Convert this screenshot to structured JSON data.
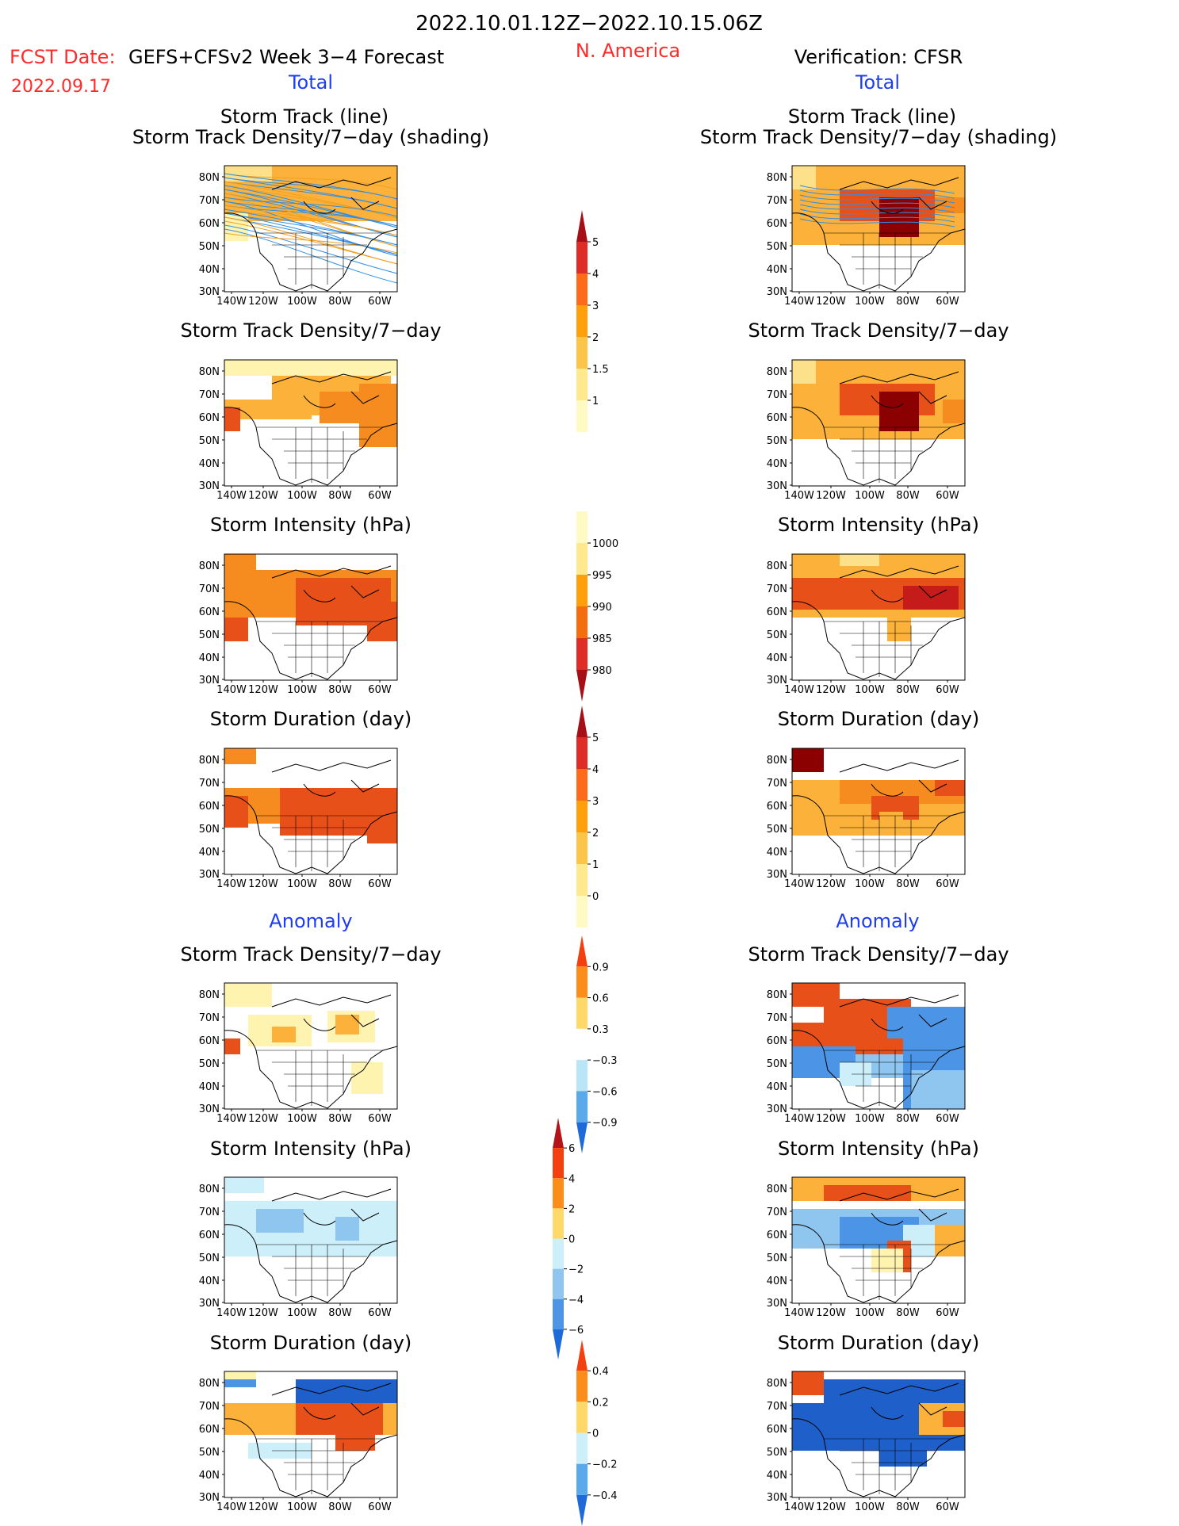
{
  "header": {
    "period": "2022.10.01.12Z−2022.10.15.06Z",
    "region": "N. America",
    "fcst_label": "FCST Date:",
    "forecast_title": "GEFS+CFSv2 Week 3−4 Forecast",
    "fcst_date": "2022.09.17",
    "verification_title": "Verification: CFSR",
    "left_total": "Total",
    "right_total": "Total",
    "left_anomaly": "Anomaly",
    "right_anomaly": "Anomaly"
  },
  "panel_titles": {
    "track_line": "Storm Track (line)",
    "track_shading": "Storm Track Density/7−day (shading)",
    "density": "Storm Track Density/7−day",
    "intensity": "Storm Intensity (hPa)",
    "duration": "Storm Duration (day)"
  },
  "axes": {
    "lat_labels": [
      "80N",
      "70N",
      "60N",
      "50N",
      "40N",
      "30N"
    ],
    "lon_labels": [
      "140W",
      "120W",
      "100W",
      "80W",
      "60W"
    ]
  },
  "colorbars": {
    "density_total": {
      "labels": [
        "5",
        "4",
        "3",
        "2",
        "1.5",
        "1"
      ],
      "colors": [
        "#a50f15",
        "#de2d26",
        "#fc6a1a",
        "#fe9f0b",
        "#fbc54a",
        "#fee98f",
        "#fff9c4"
      ]
    },
    "intensity_total": {
      "labels": [
        "1000",
        "995",
        "990",
        "985",
        "980"
      ],
      "colors": [
        "#fff9c4",
        "#fee98f",
        "#fe9f0b",
        "#f46d0e",
        "#de2d26",
        "#a50f15"
      ]
    },
    "duration_total": {
      "labels": [
        "5",
        "4",
        "3",
        "2",
        "1",
        "0"
      ],
      "colors": [
        "#a50f15",
        "#de2d26",
        "#fc6a1a",
        "#fe9f0b",
        "#fbc54a",
        "#fee98f",
        "#fff9c4"
      ]
    },
    "density_anom": {
      "labels": [
        "0.9",
        "0.6",
        "0.3",
        "−0.3",
        "−0.6",
        "−0.9"
      ],
      "colors": [
        "#f4400f",
        "#fc8d1a",
        "#fed96a",
        "#ffffff",
        "#b8e6f7",
        "#5aa9ea",
        "#1f6ad9"
      ]
    },
    "intensity_anom": {
      "labels": [
        "6",
        "4",
        "2",
        "0",
        "−2",
        "−4",
        "−6"
      ],
      "colors": [
        "#b3141a",
        "#f4400f",
        "#fc8d1a",
        "#fed96a",
        "#cdeff9",
        "#8fc6ef",
        "#4c94e5",
        "#1f6ad9"
      ]
    },
    "duration_anom": {
      "labels": [
        "0.4",
        "0.2",
        "0",
        "−0.2",
        "−0.4"
      ],
      "colors": [
        "#f4400f",
        "#fc8d1a",
        "#fed96a",
        "#cdeff9",
        "#5aa9ea",
        "#1f6ad9"
      ]
    }
  },
  "colors": {
    "header_red": "#ff2b2b",
    "label_blue": "#1f3df0",
    "track_blue": "#2f8fe6",
    "track_orange": "#f0a020"
  }
}
